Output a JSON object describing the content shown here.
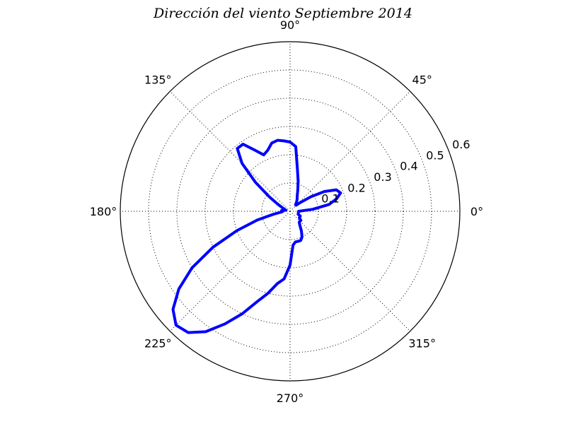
{
  "chart_data": {
    "type": "polar-line",
    "title": "Dirección del viento Septiembre 2014",
    "angle_unit": "degrees",
    "angle_ticks": [
      0,
      45,
      90,
      135,
      180,
      225,
      270,
      315
    ],
    "angle_tick_labels": [
      "0°",
      "45°",
      "90°",
      "135°",
      "180°",
      "225°",
      "270°",
      "315°"
    ],
    "radial_ticks": [
      0.1,
      0.2,
      0.3,
      0.4,
      0.5,
      0.6
    ],
    "radial_tick_labels": [
      "0.1",
      "0.2",
      "0.3",
      "0.4",
      "0.5",
      "0.6"
    ],
    "rlim": [
      0,
      0.6
    ],
    "grid": true,
    "line_color": "#0000ff",
    "series": [
      {
        "theta": [
          0,
          5,
          10,
          15,
          20,
          25,
          30,
          35,
          40,
          45,
          50,
          55,
          60,
          65,
          70,
          75,
          80,
          85,
          90,
          95,
          100,
          105,
          110,
          115,
          120,
          125,
          130,
          135,
          140,
          145,
          150,
          155,
          160,
          165,
          170,
          175,
          180,
          185,
          190,
          195,
          200,
          205,
          210,
          215,
          220,
          225,
          230,
          235,
          240,
          245,
          250,
          255,
          260,
          265,
          270,
          275,
          280,
          285,
          290,
          295,
          300,
          305,
          310,
          315,
          320,
          325,
          330,
          335,
          340,
          345,
          350,
          355,
          360
        ],
        "r": [
          0.03,
          0.08,
          0.14,
          0.17,
          0.19,
          0.18,
          0.14,
          0.09,
          0.05,
          0.03,
          0.03,
          0.04,
          0.05,
          0.06,
          0.08,
          0.11,
          0.15,
          0.23,
          0.245,
          0.25,
          0.255,
          0.25,
          0.23,
          0.22,
          0.25,
          0.29,
          0.29,
          0.24,
          0.16,
          0.09,
          0.05,
          0.03,
          0.02,
          0.015,
          0.02,
          0.03,
          0.025,
          0.03,
          0.06,
          0.12,
          0.2,
          0.3,
          0.4,
          0.48,
          0.54,
          0.57,
          0.56,
          0.52,
          0.46,
          0.4,
          0.34,
          0.3,
          0.26,
          0.24,
          0.19,
          0.12,
          0.11,
          0.11,
          0.11,
          0.1,
          0.08,
          0.06,
          0.05,
          0.05,
          0.05,
          0.04,
          0.04,
          0.04,
          0.03,
          0.03,
          0.03,
          0.03,
          0.03
        ]
      }
    ]
  }
}
